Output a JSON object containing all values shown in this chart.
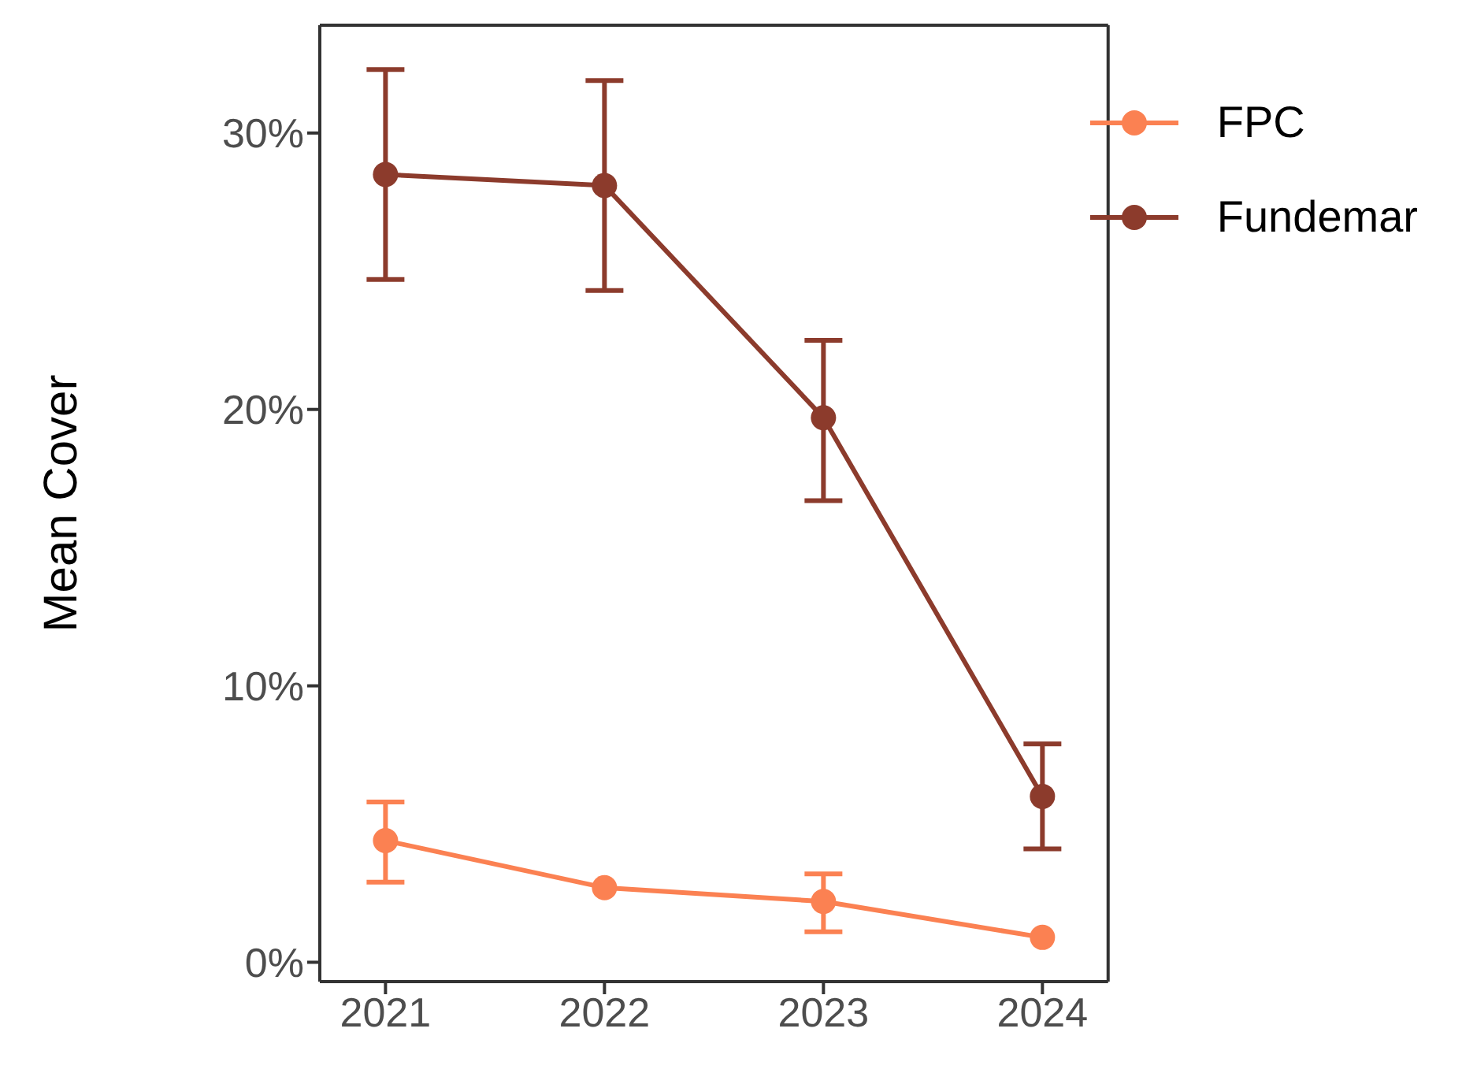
{
  "chart_data": {
    "type": "line",
    "ylabel": "Mean Cover",
    "categories": [
      "2021",
      "2022",
      "2023",
      "2024"
    ],
    "series": [
      {
        "name": "FPC",
        "color": "#fb8152",
        "values": [
          4.4,
          2.7,
          2.2,
          0.9
        ],
        "errors": [
          [
            2.9,
            5.8
          ],
          null,
          [
            1.1,
            3.2
          ],
          null
        ]
      },
      {
        "name": "Fundemar",
        "color": "#8c3b2c",
        "values": [
          28.5,
          28.1,
          19.7,
          6.0
        ],
        "errors": [
          [
            24.7,
            32.3
          ],
          [
            24.3,
            31.9
          ],
          [
            16.7,
            22.5
          ],
          [
            4.1,
            7.9
          ]
        ]
      }
    ],
    "ylim": [
      -0.7,
      33.9
    ],
    "yticks": [
      {
        "value": 0,
        "label": "0%"
      },
      {
        "value": 10,
        "label": "10%"
      },
      {
        "value": 20,
        "label": "20%"
      },
      {
        "value": 30,
        "label": "30%"
      }
    ],
    "grid": false,
    "legend": "top right",
    "marker": "circle",
    "line_style": "solid"
  }
}
